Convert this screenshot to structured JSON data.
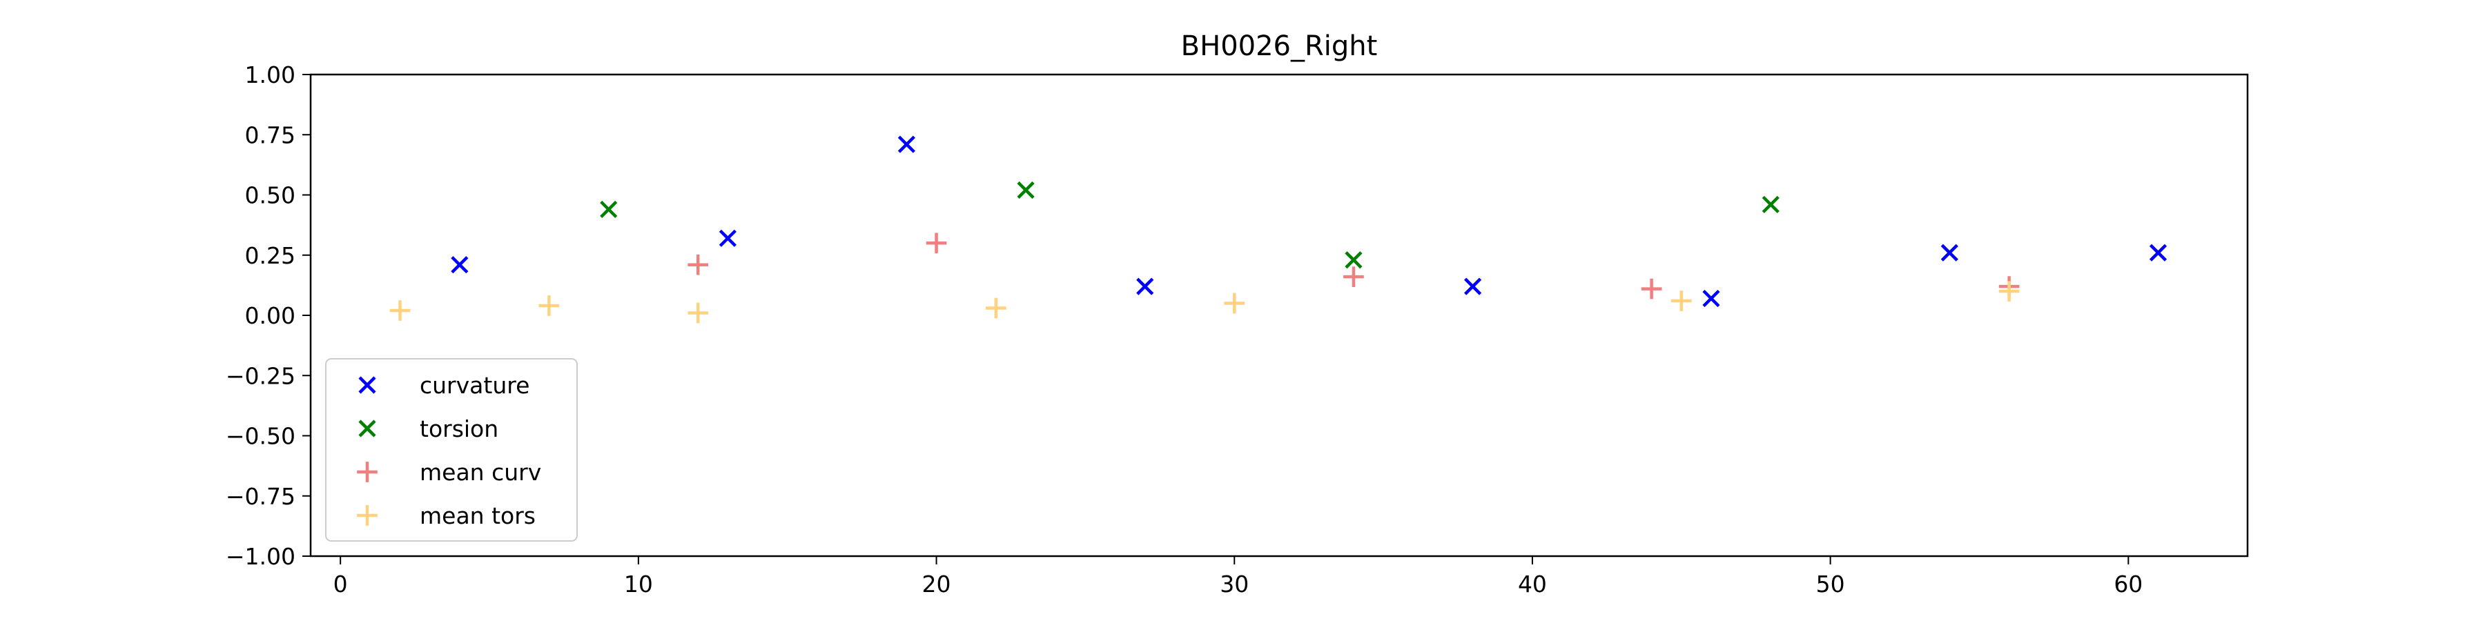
{
  "chart_data": {
    "type": "scatter",
    "title": "BH0026_Right",
    "xlabel": "",
    "ylabel": "",
    "xlim": [
      -1,
      64
    ],
    "ylim": [
      -1.0,
      1.0
    ],
    "xticks": [
      0,
      10,
      20,
      30,
      40,
      50,
      60
    ],
    "yticks": [
      1.0,
      0.75,
      0.5,
      0.25,
      0.0,
      -0.25,
      -0.5,
      -0.75,
      -1.0
    ],
    "ytick_labels": [
      "1.00",
      "0.75",
      "0.50",
      "0.25",
      "0.00",
      "−0.25",
      "−0.50",
      "−0.75",
      "−1.00"
    ],
    "grid": false,
    "legend_position": "lower-left",
    "series": [
      {
        "name": "curvature",
        "marker": "x",
        "color": "#0000ff",
        "points": [
          [
            4,
            0.21
          ],
          [
            13,
            0.32
          ],
          [
            19,
            0.71
          ],
          [
            27,
            0.12
          ],
          [
            38,
            0.12
          ],
          [
            46,
            0.07
          ],
          [
            54,
            0.26
          ],
          [
            61,
            0.26
          ]
        ]
      },
      {
        "name": "torsion",
        "marker": "x",
        "color": "#008000",
        "points": [
          [
            9,
            0.44
          ],
          [
            23,
            0.52
          ],
          [
            34,
            0.23
          ],
          [
            48,
            0.46
          ]
        ]
      },
      {
        "name": "mean curv",
        "marker": "+",
        "color": "#f08080",
        "points": [
          [
            12,
            0.21
          ],
          [
            20,
            0.3
          ],
          [
            34,
            0.16
          ],
          [
            44,
            0.11
          ],
          [
            56,
            0.12
          ]
        ]
      },
      {
        "name": "mean tors",
        "marker": "+",
        "color": "#ffd27f",
        "points": [
          [
            2,
            0.02
          ],
          [
            7,
            0.04
          ],
          [
            12,
            0.01
          ],
          [
            22,
            0.03
          ],
          [
            30,
            0.05
          ],
          [
            45,
            0.06
          ],
          [
            56,
            0.1
          ]
        ]
      }
    ]
  }
}
